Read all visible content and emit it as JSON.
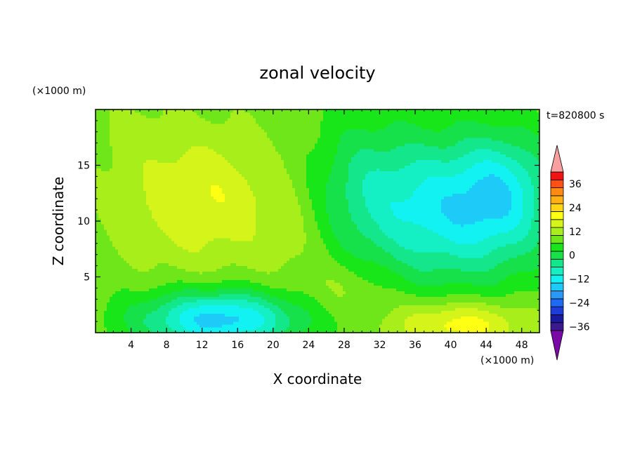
{
  "chart_data": {
    "type": "heatmap",
    "title": "zonal velocity",
    "xlabel": "X coordinate",
    "ylabel": "Z coordinate",
    "x_unit": "(×1000 m)",
    "y_unit": "(×1000 m)",
    "time_label": "t=820800 s",
    "xlim": [
      0,
      50
    ],
    "ylim": [
      0,
      20
    ],
    "x_ticks": [
      4,
      8,
      12,
      16,
      20,
      24,
      28,
      32,
      36,
      40,
      44,
      48
    ],
    "y_ticks": [
      5,
      10,
      15
    ],
    "colorbar": {
      "min": -42,
      "max": 42,
      "step": 4,
      "tick_values": [
        36,
        24,
        12,
        0,
        -12,
        -24,
        -36
      ],
      "tick_labels": [
        "36",
        "24",
        "12",
        "0",
        "−12",
        "−24",
        "−36"
      ],
      "colors": [
        "#7a0aa6",
        "#3a1a8c",
        "#1a1aa0",
        "#1e3dd8",
        "#1f6af2",
        "#2a98f6",
        "#1ecaf8",
        "#13f2f2",
        "#14f0c4",
        "#14e68c",
        "#16e04a",
        "#18e618",
        "#6ee61a",
        "#a8ee1a",
        "#d4f41a",
        "#ffff14",
        "#ffd414",
        "#ffb014",
        "#ff8a14",
        "#ff5014",
        "#f01414",
        "#f8a0a0"
      ],
      "extend_low_color": "#7a0aa6",
      "extend_high_color": "#f8a0a0"
    },
    "field_features": [
      {
        "desc": "positive max upper-left",
        "x": 13,
        "z": 12.5,
        "value": 14
      },
      {
        "desc": "negative min upper-right",
        "x": 40,
        "z": 11,
        "value": -17
      },
      {
        "desc": "negative core lower-left",
        "x": 14,
        "z": 1.5,
        "value": -16
      },
      {
        "desc": "positive max lower-right",
        "x": 43,
        "z": 1.0,
        "value": 13
      }
    ]
  }
}
